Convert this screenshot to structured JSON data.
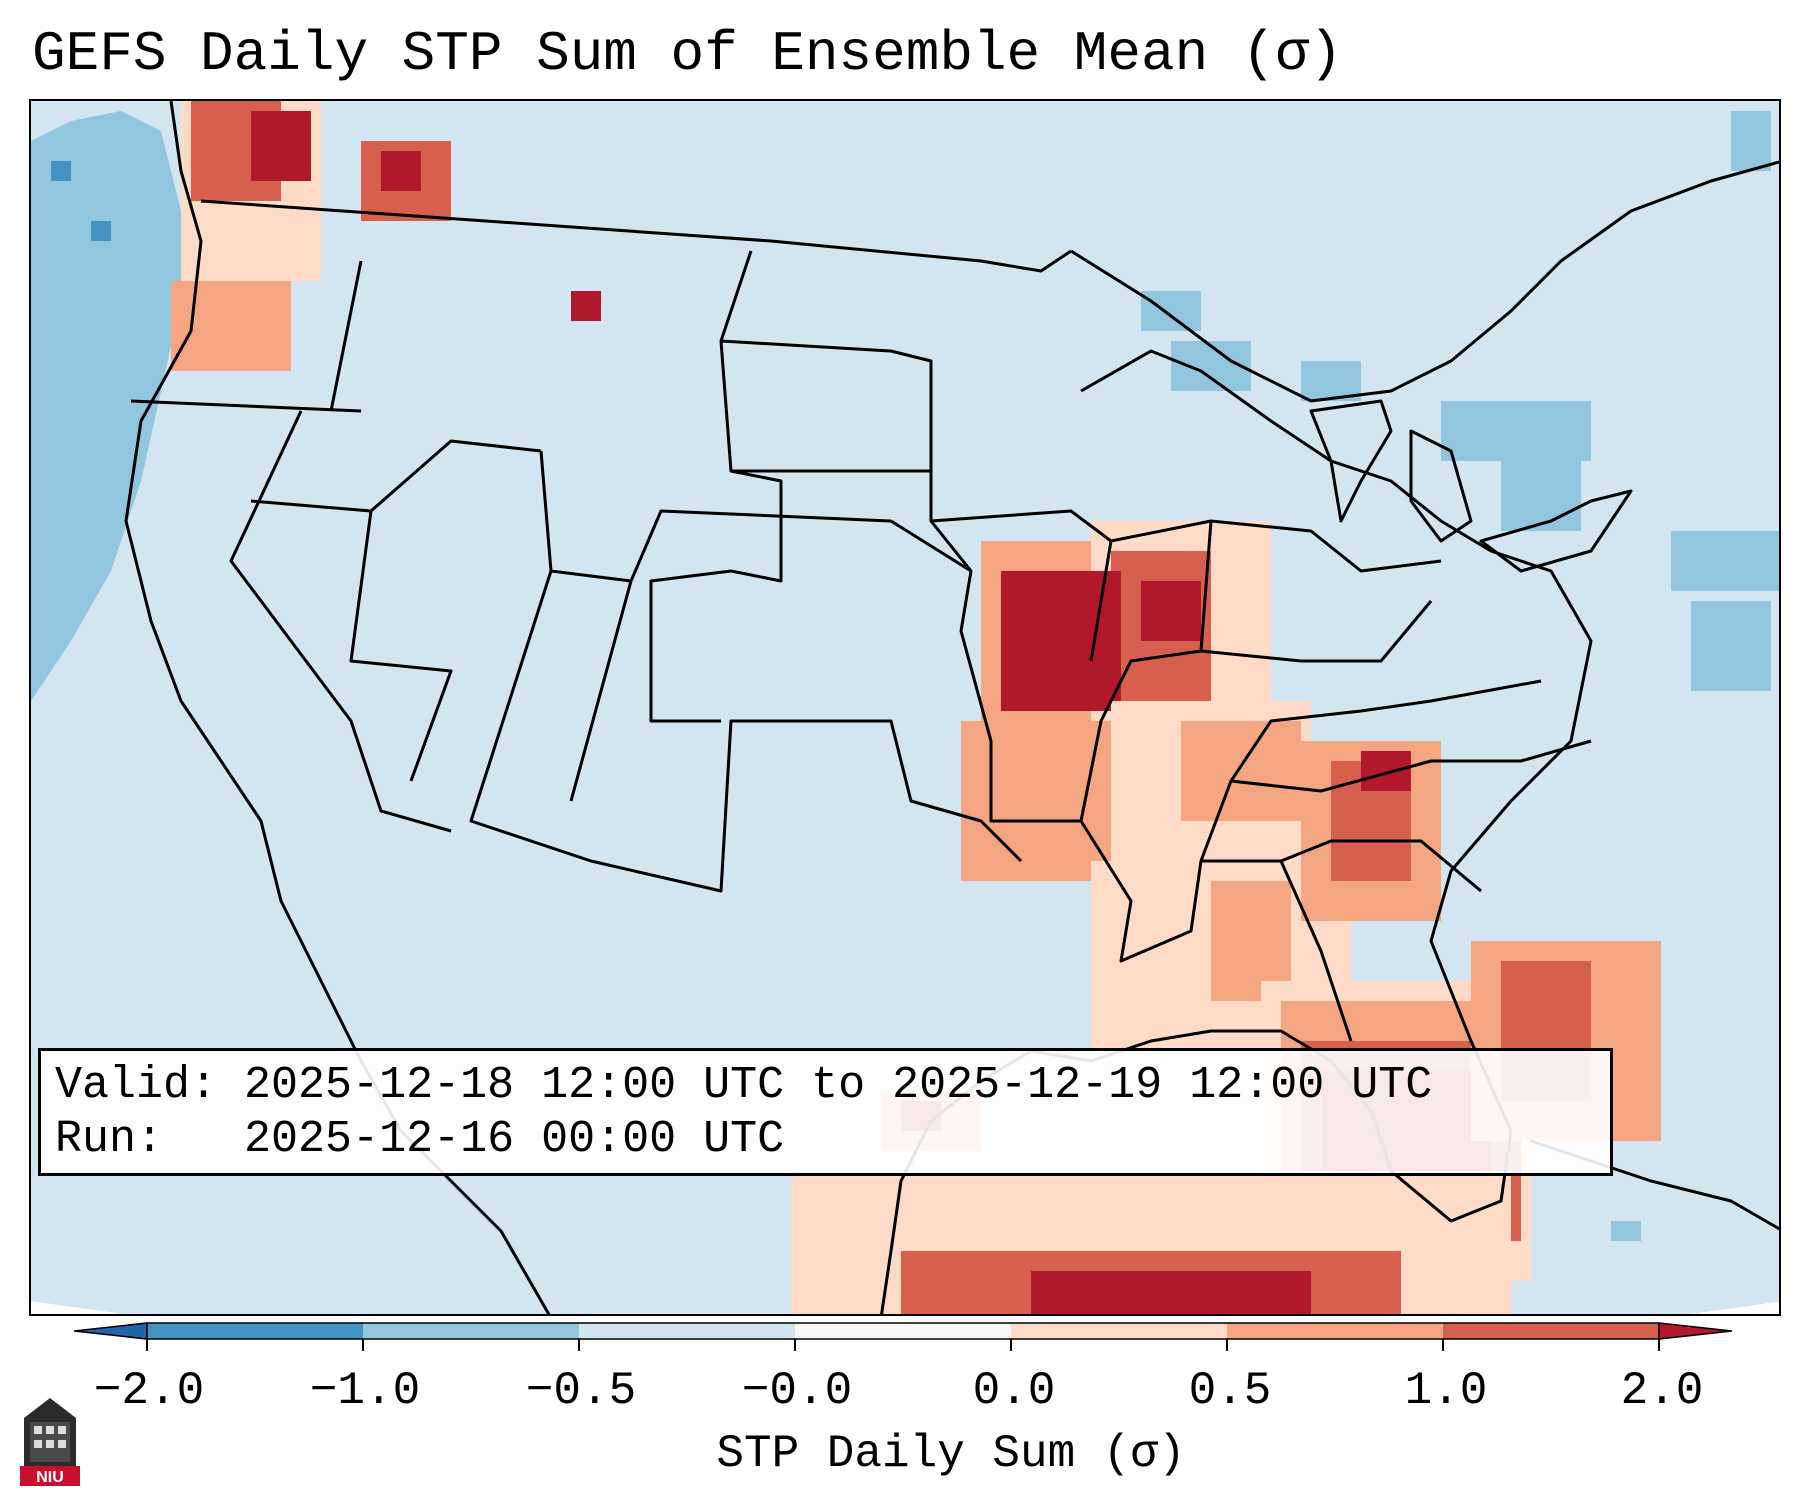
{
  "header": {
    "title": "GEFS Daily STP Sum of Ensemble Mean (σ)"
  },
  "map": {
    "ocean_color": "#d3e5f0",
    "land_color": "#d3e5f0",
    "border_color": "#000000"
  },
  "info": {
    "valid_label": "Valid:",
    "valid_value": "2025-12-18 12:00 UTC to 2025-12-19 12:00 UTC",
    "run_label": "Run:",
    "run_value": "2025-12-16 00:00 UTC"
  },
  "colorbar": {
    "label": "STP Daily Sum (σ)",
    "ticks": [
      "−2.0",
      "−1.0",
      "−0.5",
      "−0.0",
      "0.0",
      "0.5",
      "1.0",
      "2.0"
    ],
    "bins": [
      {
        "from": -2.0,
        "to": -1.0,
        "color": "#4393c3"
      },
      {
        "from": -1.0,
        "to": -0.5,
        "color": "#92c5de"
      },
      {
        "from": -0.5,
        "to": -0.0,
        "color": "#d1e5f0"
      },
      {
        "from": -0.0,
        "to": 0.0,
        "color": "#f7f7f7"
      },
      {
        "from": 0.0,
        "to": 0.5,
        "color": "#fddbc7"
      },
      {
        "from": 0.5,
        "to": 1.0,
        "color": "#f4a582"
      },
      {
        "from": 1.0,
        "to": 2.0,
        "color": "#d6604d"
      }
    ],
    "under_color": "#2166ac",
    "over_color": "#b2182b"
  },
  "logo": {
    "text": "NIU"
  }
}
